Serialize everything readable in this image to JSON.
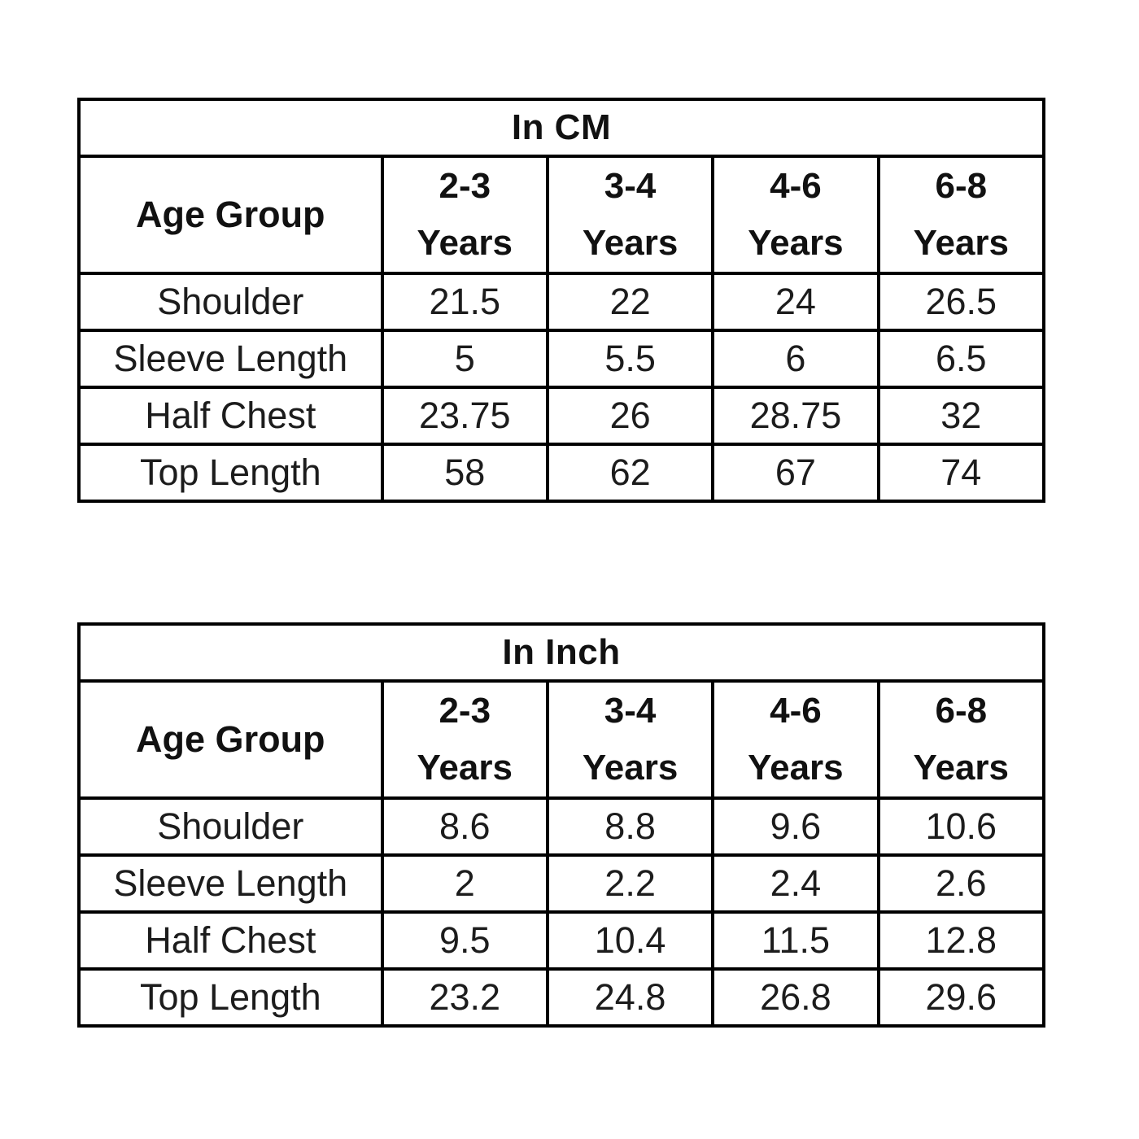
{
  "tables": [
    {
      "title": "In CM",
      "row_header": "Age Group",
      "columns": [
        {
          "line1": "2-3",
          "line2": "Years"
        },
        {
          "line1": "3-4",
          "line2": "Years"
        },
        {
          "line1": "4-6",
          "line2": "Years"
        },
        {
          "line1": "6-8",
          "line2": "Years"
        }
      ],
      "rows": [
        {
          "label": "Shoulder",
          "values": [
            "21.5",
            "22",
            "24",
            "26.5"
          ]
        },
        {
          "label": "Sleeve Length",
          "values": [
            "5",
            "5.5",
            "6",
            "6.5"
          ]
        },
        {
          "label": "Half Chest",
          "values": [
            "23.75",
            "26",
            "28.75",
            "32"
          ]
        },
        {
          "label": "Top Length",
          "values": [
            "58",
            "62",
            "67",
            "74"
          ]
        }
      ]
    },
    {
      "title": "In Inch",
      "row_header": "Age Group",
      "columns": [
        {
          "line1": "2-3",
          "line2": "Years"
        },
        {
          "line1": "3-4",
          "line2": "Years"
        },
        {
          "line1": "4-6",
          "line2": "Years"
        },
        {
          "line1": "6-8",
          "line2": "Years"
        }
      ],
      "rows": [
        {
          "label": "Shoulder",
          "values": [
            "8.6",
            "8.8",
            "9.6",
            "10.6"
          ]
        },
        {
          "label": "Sleeve Length",
          "values": [
            "2",
            "2.2",
            "2.4",
            "2.6"
          ]
        },
        {
          "label": "Half Chest",
          "values": [
            "9.5",
            "10.4",
            "11.5",
            "12.8"
          ]
        },
        {
          "label": "Top Length",
          "values": [
            "23.2",
            "24.8",
            "26.8",
            "29.6"
          ]
        }
      ]
    }
  ]
}
